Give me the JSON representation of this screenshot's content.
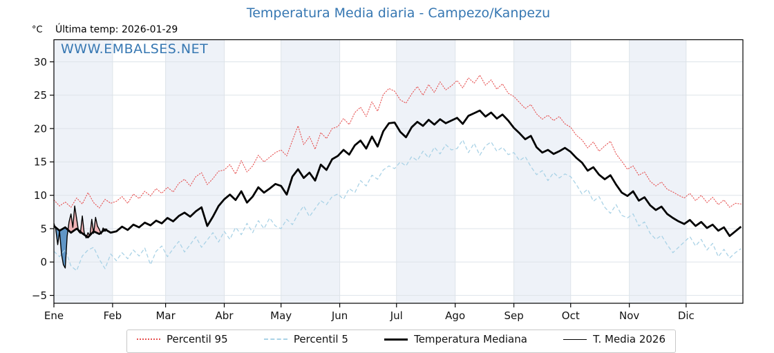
{
  "page": {
    "title": "Temperatura Media diaria - Campezo/Kanpezu",
    "unit_label": "°C",
    "last_temp_label": "Última temp: 2026-01-29",
    "watermark": "WWW.EMBALSES.NET"
  },
  "colors": {
    "title_blue": "#3677b2",
    "p95_red": "#e65050",
    "p5_blue": "#a9d2e6",
    "median_black": "#000000",
    "fill_above": "#efb3b6",
    "fill_below": "#6096c6",
    "month_band": "#eef2f8",
    "gridline": "#dde3e9"
  },
  "chart_data": {
    "type": "line",
    "title": "Temperatura Media diaria - Campezo/Kanpezu",
    "xlabel": "",
    "ylabel": "°C",
    "x_unit": "day_of_year",
    "ylim": [
      -6.2,
      33.3
    ],
    "xlim_days": [
      1,
      366
    ],
    "grid": true,
    "legend_position": "bottom",
    "y_ticks": [
      {
        "value": -5,
        "label": "−5"
      },
      {
        "value": 0,
        "label": "0"
      },
      {
        "value": 5,
        "label": "5"
      },
      {
        "value": 10,
        "label": "10"
      },
      {
        "value": 15,
        "label": "15"
      },
      {
        "value": 20,
        "label": "20"
      },
      {
        "value": 25,
        "label": "25"
      },
      {
        "value": 30,
        "label": "30"
      }
    ],
    "months": [
      {
        "label": "Ene",
        "start_day": 1,
        "shaded": true
      },
      {
        "label": "Feb",
        "start_day": 32,
        "shaded": false
      },
      {
        "label": "Mar",
        "start_day": 60,
        "shaded": true
      },
      {
        "label": "Abr",
        "start_day": 91,
        "shaded": false
      },
      {
        "label": "May",
        "start_day": 121,
        "shaded": true
      },
      {
        "label": "Jun",
        "start_day": 152,
        "shaded": false
      },
      {
        "label": "Jul",
        "start_day": 182,
        "shaded": true
      },
      {
        "label": "Ago",
        "start_day": 213,
        "shaded": false
      },
      {
        "label": "Sep",
        "start_day": 244,
        "shaded": true
      },
      {
        "label": "Oct",
        "start_day": 274,
        "shaded": false
      },
      {
        "label": "Nov",
        "start_day": 305,
        "shaded": true
      },
      {
        "label": "Dic",
        "start_day": 335,
        "shaded": false
      }
    ],
    "year_end_day": 366,
    "series": [
      {
        "name": "Percentil 95",
        "style": "dotted",
        "color": "#e65050",
        "width": 1.1,
        "day_start": 1,
        "day_step": 3,
        "values": [
          9.3,
          8.4,
          9.0,
          8.2,
          9.6,
          8.7,
          10.4,
          8.9,
          8.1,
          9.4,
          8.8,
          9.1,
          9.8,
          8.8,
          10.2,
          9.5,
          10.6,
          9.9,
          11.0,
          10.3,
          11.2,
          10.5,
          11.8,
          12.4,
          11.4,
          12.8,
          13.4,
          11.6,
          12.5,
          13.6,
          13.8,
          14.6,
          13.2,
          15.2,
          13.5,
          14.4,
          16.0,
          15.0,
          15.7,
          16.4,
          16.8,
          15.9,
          18.2,
          20.4,
          17.6,
          18.8,
          16.9,
          19.4,
          18.5,
          20.0,
          20.3,
          21.5,
          20.6,
          22.4,
          23.2,
          21.8,
          24.0,
          22.6,
          25.1,
          26.0,
          25.6,
          24.3,
          23.8,
          25.2,
          26.3,
          25.0,
          26.6,
          25.4,
          27.0,
          25.8,
          26.4,
          27.2,
          26.1,
          27.6,
          26.8,
          28.0,
          26.5,
          27.3,
          25.9,
          26.7,
          25.3,
          24.8,
          23.9,
          23.0,
          23.6,
          22.2,
          21.4,
          22.0,
          21.2,
          21.8,
          20.7,
          20.2,
          19.0,
          18.3,
          17.1,
          18.0,
          16.6,
          17.4,
          18.1,
          16.2,
          15.1,
          13.9,
          14.4,
          13.0,
          13.5,
          12.1,
          11.4,
          12.0,
          10.9,
          10.5,
          10.0,
          9.6,
          10.3,
          9.2,
          10.0,
          8.9,
          9.7,
          8.6,
          9.3,
          8.2,
          8.8,
          8.7
        ]
      },
      {
        "name": "Percentil 5",
        "style": "dashed",
        "color": "#a9d2e6",
        "width": 1.3,
        "day_start": 1,
        "day_step": 3,
        "values": [
          1.6,
          0.8,
          1.9,
          -0.6,
          -1.3,
          0.9,
          1.8,
          2.2,
          0.4,
          -1.0,
          1.2,
          0.2,
          1.4,
          0.5,
          1.8,
          0.9,
          2.1,
          -0.4,
          1.6,
          2.4,
          0.8,
          2.0,
          3.1,
          1.5,
          2.6,
          3.8,
          2.2,
          3.3,
          4.4,
          3.0,
          4.6,
          3.4,
          5.2,
          4.1,
          5.8,
          4.4,
          6.2,
          5.0,
          6.6,
          5.4,
          5.0,
          6.4,
          5.6,
          7.2,
          8.4,
          6.8,
          8.0,
          9.2,
          8.6,
          9.8,
          10.2,
          9.4,
          11.0,
          10.4,
          12.2,
          11.4,
          13.0,
          12.4,
          13.8,
          14.4,
          14.0,
          15.0,
          14.4,
          15.8,
          15.2,
          16.6,
          15.6,
          17.2,
          16.2,
          17.6,
          16.8,
          17.0,
          18.3,
          16.4,
          17.8,
          16.0,
          17.4,
          18.0,
          16.6,
          17.2,
          16.1,
          16.4,
          15.2,
          15.8,
          14.3,
          13.1,
          13.7,
          12.2,
          13.4,
          12.6,
          13.2,
          12.8,
          11.6,
          10.2,
          10.9,
          9.1,
          9.8,
          8.2,
          7.3,
          8.6,
          7.0,
          6.6,
          7.2,
          5.4,
          6.0,
          4.3,
          3.4,
          4.0,
          2.6,
          1.4,
          2.2,
          3.0,
          3.8,
          2.4,
          3.4,
          1.8,
          2.8,
          0.8,
          1.9,
          0.6,
          1.4,
          2.0
        ]
      },
      {
        "name": "Temperatura Mediana",
        "style": "solid",
        "color": "#000000",
        "width": 2.8,
        "day_start": 1,
        "day_step": 3,
        "values": [
          5.4,
          4.7,
          5.2,
          4.4,
          5.0,
          4.3,
          3.7,
          4.6,
          4.2,
          4.9,
          4.4,
          4.6,
          5.3,
          4.8,
          5.6,
          5.2,
          5.9,
          5.5,
          6.2,
          5.8,
          6.6,
          6.1,
          6.9,
          7.4,
          6.8,
          7.6,
          8.2,
          5.4,
          6.8,
          8.4,
          9.4,
          10.1,
          9.3,
          10.6,
          8.9,
          9.8,
          11.2,
          10.4,
          11.0,
          11.7,
          11.4,
          10.1,
          12.8,
          13.9,
          12.6,
          13.4,
          12.2,
          14.6,
          13.8,
          15.4,
          15.9,
          16.8,
          16.1,
          17.5,
          18.2,
          17.0,
          18.8,
          17.3,
          19.6,
          20.8,
          20.9,
          19.5,
          18.7,
          20.2,
          21.0,
          20.4,
          21.3,
          20.6,
          21.4,
          20.8,
          21.2,
          21.6,
          20.7,
          21.9,
          22.3,
          22.7,
          21.8,
          22.4,
          21.5,
          22.1,
          21.2,
          20.1,
          19.3,
          18.4,
          18.9,
          17.2,
          16.4,
          16.8,
          16.2,
          16.6,
          17.1,
          16.5,
          15.6,
          14.9,
          13.7,
          14.2,
          13.1,
          12.4,
          13.0,
          11.6,
          10.4,
          9.9,
          10.6,
          9.2,
          9.7,
          8.5,
          7.8,
          8.3,
          7.2,
          6.6,
          6.1,
          5.7,
          6.3,
          5.4,
          6.0,
          5.1,
          5.6,
          4.7,
          5.2,
          3.9,
          4.6,
          5.3
        ]
      },
      {
        "name": "T. Media 2026",
        "style": "solid",
        "color": "#000000",
        "width": 1.4,
        "day_start": 1,
        "day_step": 1,
        "values": [
          5.8,
          4.9,
          2.6,
          4.6,
          1.2,
          -0.4,
          -0.9,
          3.9,
          6.0,
          7.2,
          5.2,
          8.4,
          6.5,
          4.6,
          4.3,
          6.9,
          4.4,
          3.6,
          4.4,
          3.9,
          6.4,
          4.3,
          6.7,
          5.4,
          4.9,
          4.2,
          5.1,
          4.6,
          5.0
        ]
      }
    ],
    "fills": {
      "between": [
        "T. Media 2026",
        "Temperatura Mediana"
      ],
      "above_color": "#efb3b6",
      "below_color": "#6096c6"
    }
  }
}
